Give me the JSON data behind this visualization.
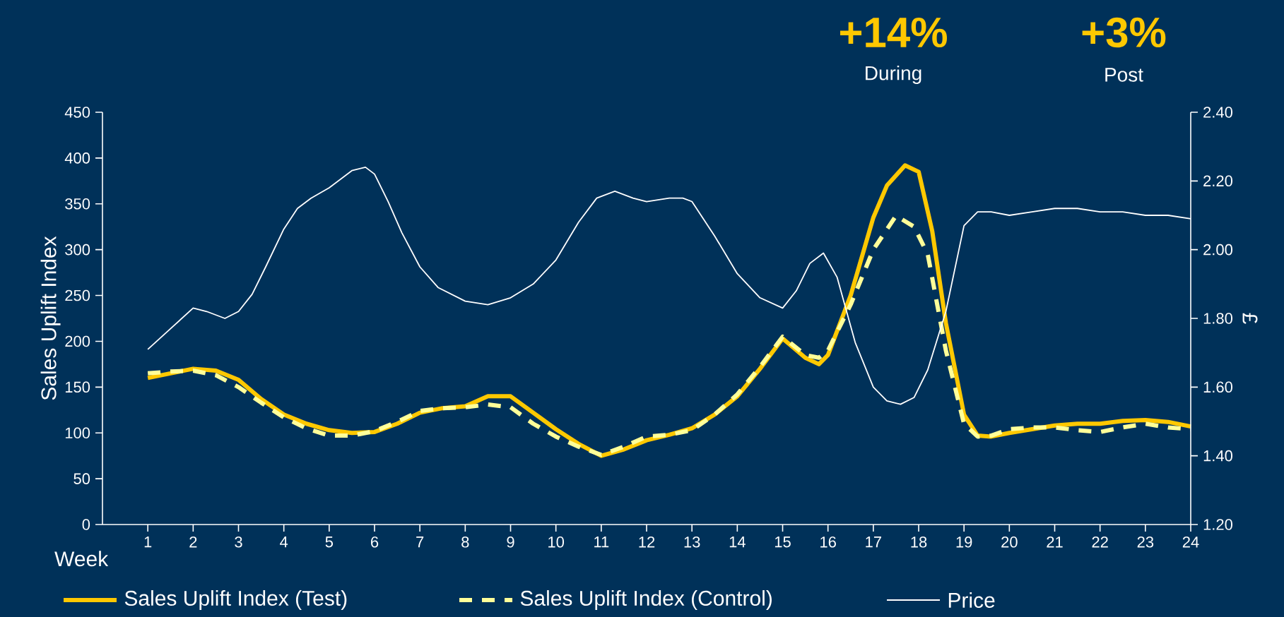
{
  "chart_data": {
    "type": "line",
    "xlabel": "Week",
    "ylabel": "Sales Uplift Index",
    "y2label": "£",
    "annotations": [
      "+14%",
      "During",
      "+3%",
      "Post"
    ],
    "xlim": [
      0,
      24
    ],
    "xticks": [
      1,
      2,
      3,
      4,
      5,
      6,
      7,
      8,
      9,
      10,
      11,
      12,
      13,
      14,
      15,
      16,
      17,
      18,
      19,
      20,
      21,
      22,
      23,
      24
    ],
    "ylim": [
      0,
      450
    ],
    "yticks": [
      0,
      50,
      100,
      150,
      200,
      250,
      300,
      350,
      400,
      450
    ],
    "y2lim": [
      1.2,
      2.4
    ],
    "y2ticks": [
      {
        "value": 1.2,
        "label": "1.20"
      },
      {
        "value": 1.4,
        "label": "1.40"
      },
      {
        "value": 1.6,
        "label": "1.60"
      },
      {
        "value": 1.8,
        "label": "1.80"
      },
      {
        "value": 2.0,
        "label": "2.00"
      },
      {
        "value": 2.2,
        "label": "2.20"
      },
      {
        "value": 2.4,
        "label": "2.40"
      }
    ],
    "grid": false,
    "legend": "bottom",
    "marker": "none",
    "series": [
      {
        "name": "Sales Uplift Index (Test)",
        "color": "#ffc800",
        "line_style": "solid",
        "x": [
          1,
          1.5,
          2,
          2.5,
          3,
          3.5,
          4,
          4.5,
          5,
          5.5,
          6,
          6.5,
          7,
          7.5,
          8,
          8.5,
          9,
          9.5,
          10,
          10.5,
          11,
          11.5,
          12,
          12.5,
          13,
          13.5,
          14,
          14.5,
          15,
          15.5,
          15.8,
          16,
          16.5,
          17,
          17.3,
          17.7,
          18,
          18.3,
          18.6,
          19,
          19.3,
          19.6,
          20,
          20.5,
          21,
          21.5,
          22,
          22.5,
          23,
          23.5,
          24
        ],
        "values": [
          160,
          165,
          170,
          168,
          158,
          137,
          120,
          110,
          103,
          100,
          101,
          110,
          122,
          127,
          129,
          140,
          140,
          122,
          104,
          88,
          75,
          82,
          92,
          98,
          105,
          120,
          140,
          170,
          203,
          182,
          175,
          185,
          250,
          335,
          370,
          392,
          385,
          320,
          220,
          120,
          97,
          96,
          100,
          104,
          108,
          110,
          110,
          113,
          114,
          112,
          107
        ]
      },
      {
        "name": "Sales Uplift Index (Control)",
        "color": "#ffff99",
        "line_style": "dashed",
        "x": [
          1,
          1.5,
          2,
          2.5,
          3,
          3.5,
          4,
          4.5,
          5,
          5.5,
          6,
          6.5,
          7,
          7.5,
          8,
          8.5,
          9,
          9.5,
          10,
          10.5,
          11,
          11.5,
          12,
          12.5,
          13,
          13.5,
          14,
          14.5,
          15,
          15.5,
          15.8,
          16,
          16.5,
          17,
          17.5,
          17.9,
          18.2,
          18.6,
          19,
          19.3,
          19.6,
          20,
          20.5,
          21,
          21.5,
          22,
          22.5,
          23,
          23.5,
          24
        ],
        "values": [
          165,
          167,
          168,
          163,
          150,
          133,
          117,
          105,
          97,
          97,
          102,
          112,
          124,
          127,
          128,
          131,
          128,
          110,
          96,
          85,
          76,
          85,
          96,
          98,
          103,
          120,
          142,
          172,
          205,
          185,
          182,
          190,
          240,
          300,
          337,
          325,
          295,
          190,
          110,
          96,
          97,
          104,
          106,
          106,
          103,
          101,
          106,
          110,
          106,
          104
        ]
      },
      {
        "name": "Price",
        "color": "#ffffff",
        "line_style": "solid",
        "axis": "y2",
        "x": [
          1,
          1.5,
          2,
          2.3,
          2.7,
          3,
          3.3,
          3.6,
          4,
          4.3,
          4.6,
          5,
          5.5,
          5.8,
          6,
          6.3,
          6.6,
          7,
          7.4,
          8,
          8.5,
          9,
          9.5,
          10,
          10.5,
          10.9,
          11.3,
          11.7,
          12,
          12.5,
          12.8,
          13,
          13.5,
          14,
          14.5,
          15,
          15.3,
          15.6,
          15.9,
          16.2,
          16.6,
          17,
          17.3,
          17.6,
          17.9,
          18.2,
          18.6,
          19,
          19.3,
          19.6,
          20,
          20.5,
          21,
          21.5,
          22,
          22.5,
          23,
          23.5,
          24
        ],
        "values": [
          1.71,
          1.77,
          1.83,
          1.82,
          1.8,
          1.82,
          1.87,
          1.95,
          2.06,
          2.12,
          2.15,
          2.18,
          2.23,
          2.24,
          2.22,
          2.14,
          2.05,
          1.95,
          1.89,
          1.85,
          1.84,
          1.86,
          1.9,
          1.97,
          2.08,
          2.15,
          2.17,
          2.15,
          2.14,
          2.15,
          2.15,
          2.14,
          2.04,
          1.93,
          1.86,
          1.83,
          1.88,
          1.96,
          1.99,
          1.92,
          1.73,
          1.6,
          1.56,
          1.55,
          1.57,
          1.65,
          1.82,
          2.07,
          2.11,
          2.11,
          2.1,
          2.11,
          2.12,
          2.12,
          2.11,
          2.11,
          2.1,
          2.1,
          2.09
        ]
      }
    ]
  }
}
